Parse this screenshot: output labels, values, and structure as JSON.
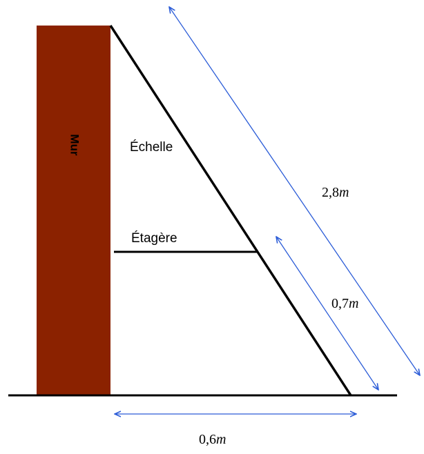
{
  "labels": {
    "wall": "Mur",
    "ladder": "Échelle",
    "shelf": "Étagère"
  },
  "measurements": {
    "ladder_length": {
      "value": "2,8",
      "unit": "m"
    },
    "lower_segment": {
      "value": "0,7",
      "unit": "m"
    },
    "ground_distance": {
      "value": "0,6",
      "unit": "m"
    }
  },
  "colors": {
    "wall": "#8b2200",
    "line": "#000000",
    "arrow": "#2a5bd7"
  }
}
